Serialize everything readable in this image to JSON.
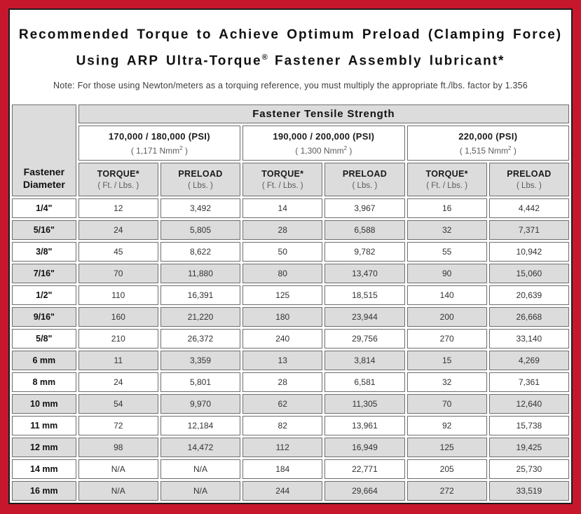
{
  "colors": {
    "frame_red": "#c7172d",
    "panel_border": "#1c1c1c",
    "header_gray": "#dcdcdc",
    "row_stripe_gray": "#dcdcdc",
    "cell_border": "#6e6e6e"
  },
  "title": {
    "line1": "Recommended Torque to Achieve Optimum Preload (Clamping Force)",
    "line2_prefix": "Using ARP Ultra-Torque",
    "line2_reg_mark": "®",
    "line2_suffix": " Fastener Assembly lubricant*"
  },
  "note": "Note: For those using Newton/meters as a torquing reference, you must multiply the appropriate ft./lbs. factor by 1.356",
  "table": {
    "tensile_header": "Fastener Tensile Strength",
    "diameter_header": "Fastener Diameter",
    "groups": [
      {
        "psi": "170,000 / 180,000 (PSI)",
        "nmm_prefix": "( 1,171 Nmm",
        "nmm_sup": "2",
        "nmm_suffix": " )"
      },
      {
        "psi": "190,000 / 200,000 (PSI)",
        "nmm_prefix": "( 1,300 Nmm",
        "nmm_sup": "2",
        "nmm_suffix": " )"
      },
      {
        "psi": "220,000 (PSI)",
        "nmm_prefix": "( 1,515 Nmm",
        "nmm_sup": "2",
        "nmm_suffix": " )"
      }
    ],
    "col_headers": {
      "torque_label": "TORQUE*",
      "torque_sub": "( Ft. / Lbs. )",
      "preload_label": "PRELOAD",
      "preload_sub": "( Lbs. )"
    },
    "rows": [
      {
        "diameter": "1/4\"",
        "values": [
          "12",
          "3,492",
          "14",
          "3,967",
          "16",
          "4,442"
        ]
      },
      {
        "diameter": "5/16\"",
        "values": [
          "24",
          "5,805",
          "28",
          "6,588",
          "32",
          "7,371"
        ]
      },
      {
        "diameter": "3/8\"",
        "values": [
          "45",
          "8,622",
          "50",
          "9,782",
          "55",
          "10,942"
        ]
      },
      {
        "diameter": "7/16\"",
        "values": [
          "70",
          "11,880",
          "80",
          "13,470",
          "90",
          "15,060"
        ]
      },
      {
        "diameter": "1/2\"",
        "values": [
          "110",
          "16,391",
          "125",
          "18,515",
          "140",
          "20,639"
        ]
      },
      {
        "diameter": "9/16\"",
        "values": [
          "160",
          "21,220",
          "180",
          "23,944",
          "200",
          "26,668"
        ]
      },
      {
        "diameter": "5/8\"",
        "values": [
          "210",
          "26,372",
          "240",
          "29,756",
          "270",
          "33,140"
        ]
      },
      {
        "diameter": "6 mm",
        "values": [
          "11",
          "3,359",
          "13",
          "3,814",
          "15",
          "4,269"
        ]
      },
      {
        "diameter": "8 mm",
        "values": [
          "24",
          "5,801",
          "28",
          "6,581",
          "32",
          "7,361"
        ]
      },
      {
        "diameter": "10 mm",
        "values": [
          "54",
          "9,970",
          "62",
          "11,305",
          "70",
          "12,640"
        ]
      },
      {
        "diameter": "11 mm",
        "values": [
          "72",
          "12,184",
          "82",
          "13,961",
          "92",
          "15,738"
        ]
      },
      {
        "diameter": "12 mm",
        "values": [
          "98",
          "14,472",
          "112",
          "16,949",
          "125",
          "19,425"
        ]
      },
      {
        "diameter": "14 mm",
        "values": [
          "N/A",
          "N/A",
          "184",
          "22,771",
          "205",
          "25,730"
        ]
      },
      {
        "diameter": "16 mm",
        "values": [
          "N/A",
          "N/A",
          "244",
          "29,664",
          "272",
          "33,519"
        ]
      }
    ]
  }
}
